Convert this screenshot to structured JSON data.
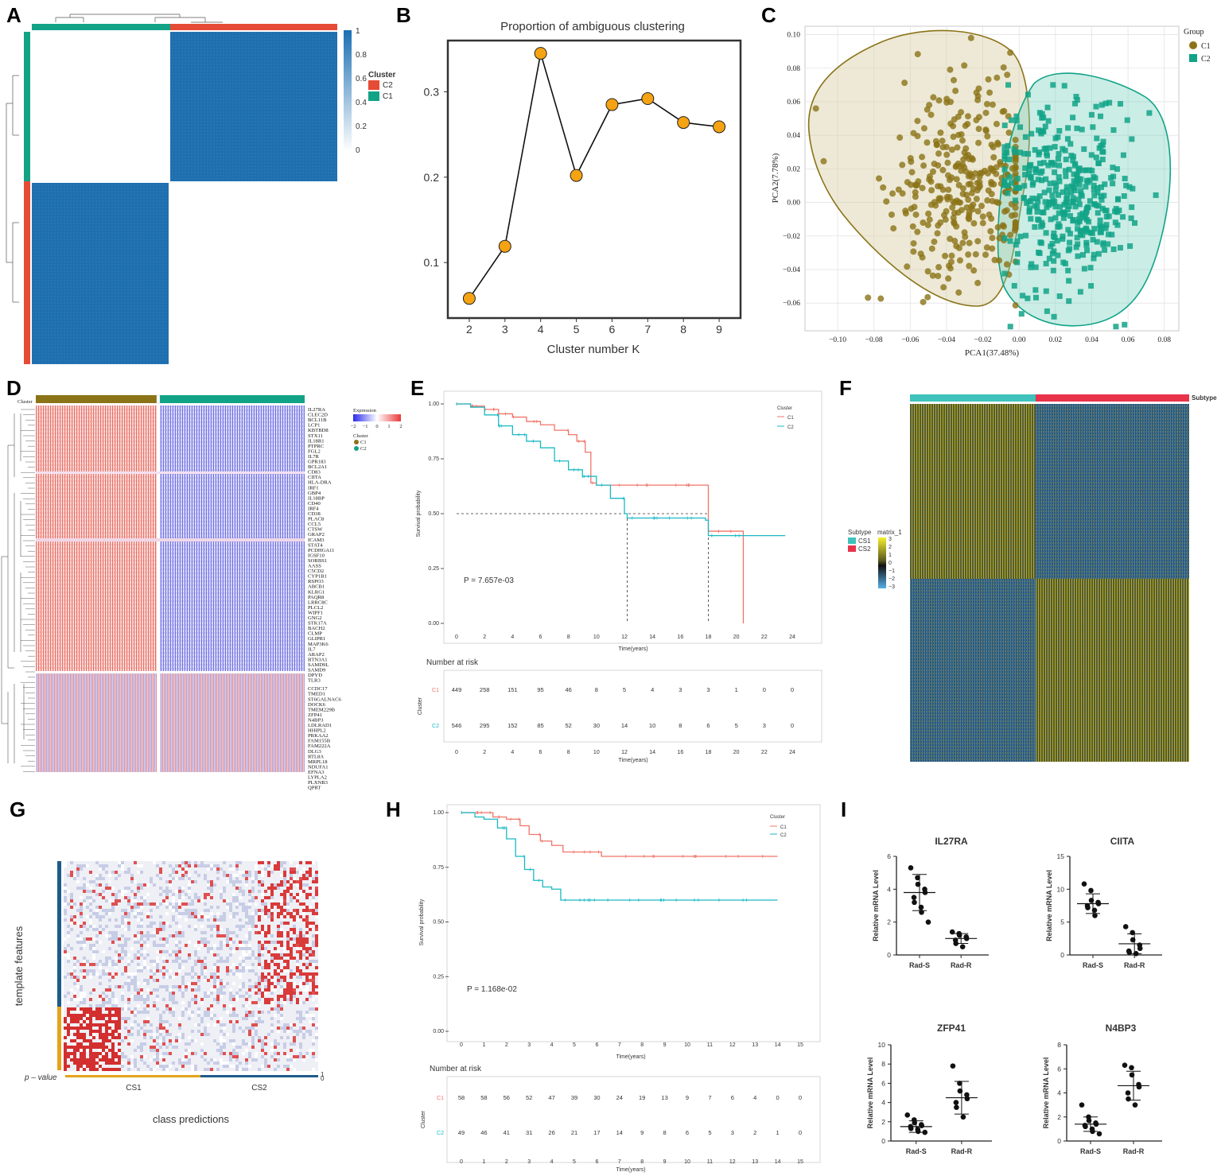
{
  "panels": {
    "A": "A",
    "B": "B",
    "C": "C",
    "D": "D",
    "E": "E",
    "F": "F",
    "G": "G",
    "H": "H",
    "I": "I"
  },
  "colors": {
    "c1_gold": "#8b7317",
    "c2_teal": "#12a387",
    "heat_blue": "#1b6fb3",
    "km_red": "#f07468",
    "km_cyan": "#19b9c3",
    "cs1": "#3fc2bc",
    "cs2": "#e8334a",
    "dot_orange": "#f5a312",
    "pval_blue": "#1f5a8b",
    "pval_orange": "#e3a41c"
  },
  "panelA": {
    "legend_title": "Cluster",
    "legend_items": [
      {
        "label": "C2",
        "color": "#e64b35"
      },
      {
        "label": "C1",
        "color": "#12a387"
      }
    ],
    "colorbar_ticks": [
      "1",
      "0.8",
      "0.6",
      "0.4",
      "0.2",
      "0"
    ]
  },
  "chart_data": [
    {
      "id": "B",
      "type": "line",
      "title": "Proportion of ambiguous clustering",
      "xlabel": "Cluster number K",
      "ylabel": "",
      "x": [
        2,
        3,
        4,
        5,
        6,
        7,
        8,
        9
      ],
      "values": [
        0.058,
        0.119,
        0.345,
        0.202,
        0.285,
        0.292,
        0.264,
        0.259
      ],
      "yticks": [
        "0.1",
        "0.2",
        "0.3"
      ],
      "xlim": [
        1.4,
        9.6
      ],
      "ylim": [
        0.035,
        0.36
      ]
    },
    {
      "id": "C",
      "type": "scatter",
      "xlabel": "PCA1(37.48%)",
      "ylabel": "PCA2(7.78%)",
      "xlim": [
        -0.118,
        0.088
      ],
      "ylim": [
        -0.0765,
        0.105
      ],
      "xticks": [
        "−0.10",
        "−0.08",
        "−0.06",
        "−0.04",
        "−0.02",
        "0.00",
        "0.02",
        "0.04",
        "0.06",
        "0.08"
      ],
      "yticks": [
        "0.10",
        "0.08",
        "0.06",
        "0.04",
        "0.02",
        "0.00",
        "−0.02",
        "−0.04",
        "−0.06"
      ],
      "legend_title": "Group",
      "series": [
        {
          "name": "C1",
          "count": 520,
          "center": [
            -0.028,
            0.012
          ]
        },
        {
          "name": "C2",
          "count": 620,
          "center": [
            0.024,
            0.002
          ]
        }
      ]
    },
    {
      "id": "E",
      "type": "line",
      "xlabel": "Time(years)",
      "ylabel": "Survival probability",
      "legend_title": "Cluster",
      "pvalue": "P = 7.657e-03",
      "xticks": [
        "0",
        "2",
        "4",
        "6",
        "8",
        "10",
        "12",
        "14",
        "16",
        "18",
        "20",
        "22",
        "24"
      ],
      "yticks": [
        "1.00",
        "0.75",
        "0.50",
        "0.25",
        "0.00"
      ],
      "series": [
        {
          "name": "C1",
          "color": "#f07468",
          "points": [
            [
              0,
              1
            ],
            [
              1,
              0.99
            ],
            [
              2,
              0.975
            ],
            [
              3,
              0.955
            ],
            [
              4,
              0.94
            ],
            [
              5,
              0.92
            ],
            [
              6,
              0.905
            ],
            [
              7,
              0.88
            ],
            [
              8,
              0.86
            ],
            [
              8.6,
              0.83
            ],
            [
              9.2,
              0.78
            ],
            [
              9.6,
              0.64
            ],
            [
              10,
              0.63
            ],
            [
              18,
              0.63
            ],
            [
              18,
              0.42
            ],
            [
              20.5,
              0.41
            ],
            [
              20.5,
              0
            ]
          ]
        },
        {
          "name": "C2",
          "color": "#19b9c3",
          "points": [
            [
              0,
              1
            ],
            [
              1,
              0.985
            ],
            [
              2,
              0.95
            ],
            [
              3,
              0.9
            ],
            [
              4,
              0.86
            ],
            [
              5,
              0.83
            ],
            [
              6,
              0.8
            ],
            [
              7,
              0.74
            ],
            [
              8,
              0.7
            ],
            [
              9,
              0.67
            ],
            [
              10,
              0.63
            ],
            [
              11,
              0.57
            ],
            [
              12,
              0.5
            ],
            [
              12.2,
              0.48
            ],
            [
              17.8,
              0.47
            ],
            [
              18,
              0.4
            ],
            [
              23.5,
              0.4
            ]
          ]
        }
      ],
      "median": [
        {
          "x": 12.2
        },
        {
          "x": 18
        }
      ],
      "risk_title": "Number at risk",
      "risk_ylabel": "Cluster",
      "risk_rows": [
        {
          "name": "C1",
          "values": [
            "449",
            "258",
            "151",
            "95",
            "46",
            "8",
            "5",
            "4",
            "3",
            "3",
            "1",
            "0",
            "0"
          ]
        },
        {
          "name": "C2",
          "values": [
            "546",
            "295",
            "152",
            "85",
            "52",
            "30",
            "14",
            "10",
            "8",
            "6",
            "5",
            "3",
            "0"
          ]
        }
      ]
    },
    {
      "id": "H",
      "type": "line",
      "xlabel": "Time(years)",
      "ylabel": "Survival probability",
      "legend_title": "Cluster",
      "pvalue": "P = 1.168e-02",
      "xticks": [
        "0",
        "1",
        "2",
        "3",
        "4",
        "5",
        "6",
        "7",
        "8",
        "9",
        "10",
        "11",
        "12",
        "13",
        "14",
        "15"
      ],
      "yticks": [
        "1.00",
        "0.75",
        "0.50",
        "0.25",
        "0.00"
      ],
      "series": [
        {
          "name": "C1",
          "color": "#f07468",
          "points": [
            [
              0,
              1
            ],
            [
              1,
              1
            ],
            [
              1.4,
              0.98
            ],
            [
              2,
              0.97
            ],
            [
              2.6,
              0.94
            ],
            [
              3,
              0.9
            ],
            [
              3.5,
              0.87
            ],
            [
              4,
              0.85
            ],
            [
              4.5,
              0.82
            ],
            [
              6,
              0.82
            ],
            [
              6.2,
              0.8
            ],
            [
              14,
              0.8
            ]
          ]
        },
        {
          "name": "C2",
          "color": "#19b9c3",
          "points": [
            [
              0,
              1
            ],
            [
              0.6,
              0.98
            ],
            [
              1,
              0.97
            ],
            [
              1.6,
              0.93
            ],
            [
              2,
              0.88
            ],
            [
              2.4,
              0.8
            ],
            [
              2.8,
              0.74
            ],
            [
              3.2,
              0.69
            ],
            [
              3.6,
              0.66
            ],
            [
              4,
              0.65
            ],
            [
              4.4,
              0.6
            ],
            [
              14,
              0.6
            ]
          ]
        }
      ],
      "risk_title": "Number at risk",
      "risk_ylabel": "Cluster",
      "risk_rows": [
        {
          "name": "C1",
          "values": [
            "58",
            "58",
            "56",
            "52",
            "47",
            "39",
            "30",
            "24",
            "19",
            "13",
            "9",
            "7",
            "6",
            "4",
            "0",
            "0"
          ]
        },
        {
          "name": "C2",
          "values": [
            "49",
            "46",
            "41",
            "31",
            "26",
            "21",
            "17",
            "14",
            "9",
            "8",
            "6",
            "5",
            "3",
            "2",
            "1",
            "0"
          ]
        }
      ]
    },
    {
      "id": "I",
      "type": "scatter",
      "ylabel": "Relative mRNA Level",
      "subplots": [
        {
          "title": "IL27RA",
          "yticks": [
            "0",
            "2",
            "4",
            "6"
          ],
          "ymax": 6,
          "groups": [
            {
              "label": "Rad-S",
              "values": [
                5.3,
                4.7,
                4.3,
                4.0,
                3.8,
                3.5,
                3.2,
                2.9,
                2.6,
                2.0
              ],
              "mean": 3.8,
              "sd": 1.1
            },
            {
              "label": "Rad-R",
              "values": [
                1.4,
                1.3,
                1.2,
                1.1,
                1.0,
                0.9,
                0.7,
                0.5
              ],
              "mean": 1.0,
              "sd": 0.3
            }
          ]
        },
        {
          "title": "CIITA",
          "yticks": [
            "0",
            "5",
            "10",
            "15"
          ],
          "ymax": 15,
          "groups": [
            {
              "label": "Rad-S",
              "values": [
                10.8,
                9.8,
                8.3,
                8.0,
                7.8,
                7.5,
                7.2,
                6.8,
                6.0
              ],
              "mean": 7.8,
              "sd": 1.5
            },
            {
              "label": "Rad-R",
              "values": [
                4.3,
                3.4,
                2.3,
                1.5,
                1.0,
                0.6,
                0.4,
                0.2
              ],
              "mean": 1.7,
              "sd": 1.5
            }
          ]
        },
        {
          "title": "ZFP41",
          "yticks": [
            "0",
            "2",
            "4",
            "6",
            "8",
            "10"
          ],
          "ymax": 10,
          "groups": [
            {
              "label": "Rad-S",
              "values": [
                2.7,
                2.2,
                1.9,
                1.7,
                1.6,
                1.5,
                1.3,
                1.2,
                1.0,
                0.9
              ],
              "mean": 1.5,
              "sd": 0.6
            },
            {
              "label": "Rad-R",
              "values": [
                7.8,
                6.0,
                5.2,
                4.8,
                4.4,
                4.0,
                3.5,
                2.5
              ],
              "mean": 4.5,
              "sd": 1.7
            }
          ]
        },
        {
          "title": "N4BP3",
          "yticks": [
            "0",
            "2",
            "4",
            "6",
            "8"
          ],
          "ymax": 8,
          "groups": [
            {
              "label": "Rad-S",
              "values": [
                3.0,
                2.0,
                1.7,
                1.5,
                1.4,
                1.3,
                1.2,
                1.0,
                0.8,
                0.6
              ],
              "mean": 1.4,
              "sd": 0.6
            },
            {
              "label": "Rad-R",
              "values": [
                6.3,
                6.1,
                5.5,
                4.7,
                4.5,
                4.0,
                3.5,
                3.0
              ],
              "mean": 4.6,
              "sd": 1.2
            }
          ]
        }
      ]
    }
  ],
  "panelD": {
    "cluster_label": "Cluster",
    "legend_expression": "Expression",
    "legend_ticks": [
      "−2",
      "−1",
      "0",
      "1",
      "2"
    ],
    "legend_cluster": "Cluster",
    "legend_items": [
      "C1",
      "C2"
    ],
    "genes": [
      "IL27RA",
      "CLEC2D",
      "BCL11B",
      "LCP1",
      "KBTBD8",
      "STX11",
      "IL18R1",
      "PTPRC",
      "FGL2",
      "IL7R",
      "GPR183",
      "BCL2A1",
      "CD83",
      "CIITA",
      "HLA-DRA",
      "IRF1",
      "GBP4",
      "IL18BP",
      "CD40",
      "IRF4",
      "CD38",
      "PLAC8",
      "CCL5",
      "CTSW",
      "GRAP2",
      "ICAM3",
      "STAT4",
      "PCDHGA11",
      "IGSF10",
      "SORBS1",
      "AASS",
      "C5CD2",
      "CYP1B1",
      "RSPO3",
      "ABCB1",
      "KLRG1",
      "PAQR8",
      "LRRC8C",
      "PLCL2",
      "WIPF1",
      "GNG2",
      "STK17A",
      "BACH2",
      "CLMP",
      "GLIPR1",
      "MAP3K6",
      "IL7",
      "ARAP2",
      "BTN3A1",
      "SAMD9L",
      "SAMD9",
      "DPYD",
      "TLR3",
      "CCDC17",
      "TMED1",
      "ST6GALNAC6",
      "DOCK6",
      "TMEM229B",
      "ZFP41",
      "N4BP3",
      "LDLRAD1",
      "HHIPL2",
      "PRKAA2",
      "FAM155B",
      "FAM222A",
      "DLG3",
      "RTL8A",
      "MRPL18",
      "NDUFA1",
      "EFNA3",
      "LYPLA2",
      "PLXNB3",
      "QPRT"
    ]
  },
  "panelF": {
    "subtype_label": "Subtype",
    "legend_subtype": "Subtype",
    "legend_matrix": "matrix_1",
    "legend_items": [
      "CS1",
      "CS2"
    ],
    "legend_ticks": [
      "3",
      "2",
      "1",
      "0",
      "−1",
      "−2",
      "−3"
    ]
  },
  "panelG": {
    "ylabel": "template features",
    "xlabel": "class predictions",
    "pvalue_label": "p – value",
    "classes": [
      "CS1",
      "CS2"
    ],
    "corner_ticks": [
      "1",
      "0"
    ]
  }
}
